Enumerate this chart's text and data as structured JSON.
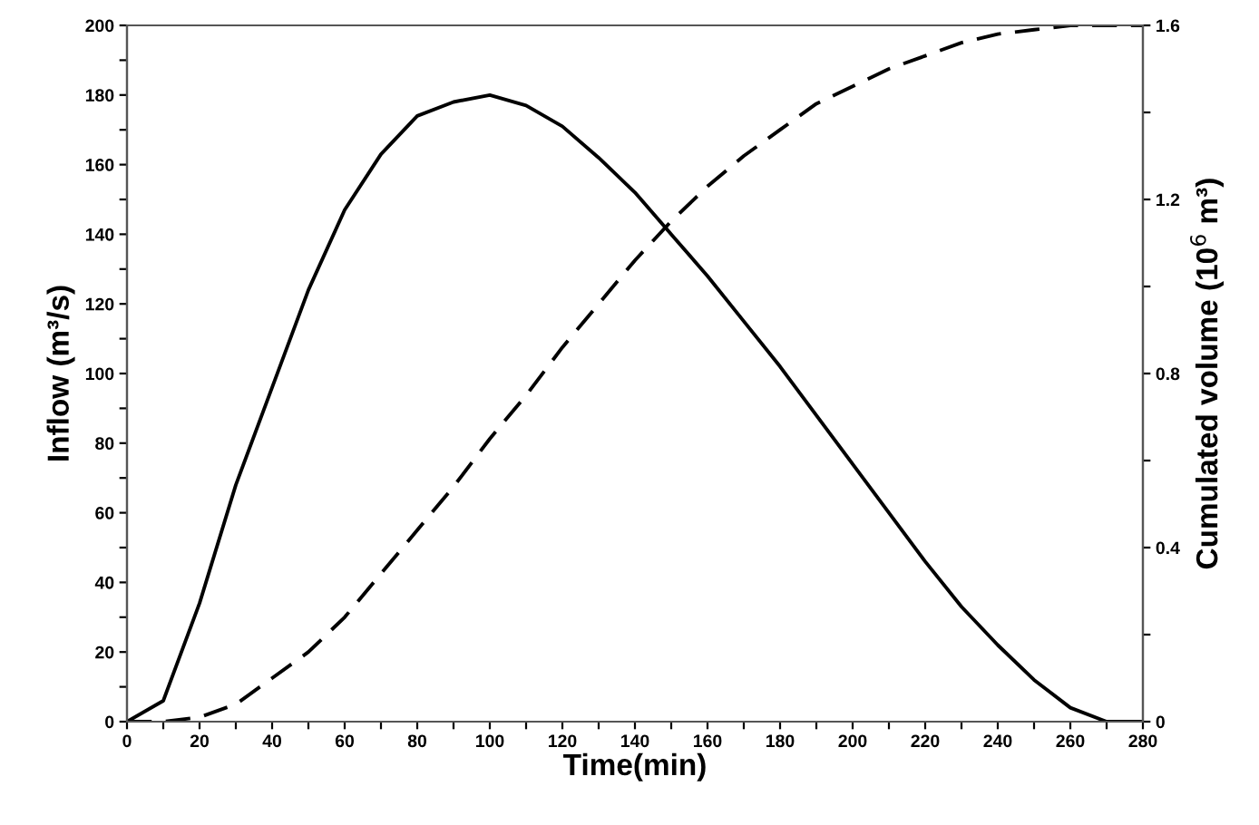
{
  "chart_data": {
    "type": "line",
    "xlabel": "Time(min)",
    "ylabel": "Inflow (m³/s)",
    "y2label": "Cumulated volume (10$^{6}$ m³)",
    "x": [
      0,
      10,
      20,
      30,
      40,
      50,
      60,
      70,
      80,
      90,
      100,
      110,
      120,
      130,
      140,
      150,
      160,
      170,
      180,
      190,
      200,
      210,
      220,
      230,
      240,
      250,
      260,
      270,
      280
    ],
    "series": [
      {
        "color": "#000000",
        "line_style": "solid",
        "values": [
          0,
          6,
          34,
          68,
          96,
          124,
          147,
          163,
          174,
          178,
          180,
          177,
          171,
          162,
          152,
          140,
          128,
          115,
          102,
          88,
          74,
          60,
          46,
          33,
          22,
          12,
          4,
          0,
          0
        ]
      },
      {
        "color": "#000000",
        "line_style": "dashed",
        "axis": "y2",
        "values": [
          0,
          0,
          0.01,
          0.04,
          0.1,
          0.16,
          0.24,
          0.34,
          0.44,
          0.54,
          0.65,
          0.75,
          0.86,
          0.96,
          1.06,
          1.15,
          1.23,
          1.3,
          1.36,
          1.42,
          1.46,
          1.5,
          1.53,
          1.56,
          1.58,
          1.59,
          1.6,
          1.6,
          1.6
        ]
      }
    ],
    "xlim": [
      0,
      280
    ],
    "ylim": [
      0,
      200
    ],
    "y2lim": [
      0,
      1.6
    ],
    "xticks": [
      0,
      {
        "value": 10,
        "label": null
      },
      20,
      {
        "value": 30,
        "label": null
      },
      40,
      {
        "value": 50,
        "label": null
      },
      60,
      {
        "value": 70,
        "label": null
      },
      80,
      {
        "value": 90,
        "label": null
      },
      100,
      {
        "value": 110,
        "label": null
      },
      120,
      {
        "value": 130,
        "label": null
      },
      140,
      {
        "value": 150,
        "label": null
      },
      160,
      {
        "value": 170,
        "label": null
      },
      180,
      {
        "value": 190,
        "label": null
      },
      200,
      {
        "value": 210,
        "label": null
      },
      220,
      {
        "value": 230,
        "label": null
      },
      240,
      {
        "value": 250,
        "label": null
      },
      260,
      {
        "value": 270,
        "label": null
      },
      280
    ],
    "yticks": [
      0,
      {
        "value": 10,
        "label": null
      },
      20,
      {
        "value": 30,
        "label": null
      },
      40,
      {
        "value": 50,
        "label": null
      },
      60,
      {
        "value": 70,
        "label": null
      },
      80,
      {
        "value": 90,
        "label": null
      },
      100,
      {
        "value": 110,
        "label": null
      },
      120,
      {
        "value": 130,
        "label": null
      },
      140,
      {
        "value": 150,
        "label": null
      },
      160,
      {
        "value": 170,
        "label": null
      },
      180,
      {
        "value": 190,
        "label": null
      },
      200
    ],
    "y2ticks": [
      {
        "value": 0,
        "label": "0"
      },
      {
        "value": 0.2,
        "label": null
      },
      0.4,
      {
        "value": 0.6,
        "label": null
      },
      0.8,
      {
        "value": 1.0,
        "label": null
      },
      1.2,
      {
        "value": 1.4,
        "label": null
      },
      1.6
    ],
    "grid": false,
    "legend": false
  }
}
